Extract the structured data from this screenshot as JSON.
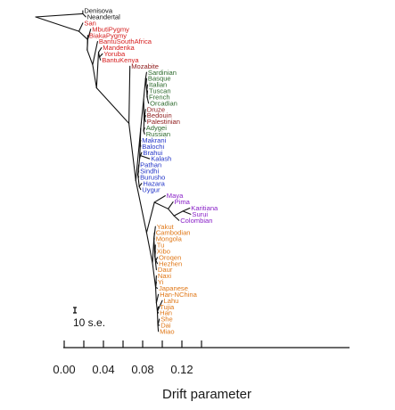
{
  "chart_data": {
    "type": "tree",
    "xlabel": "Drift parameter",
    "xlim": [
      -0.02,
      0.15
    ],
    "x_ticks": [
      "0.00",
      "0.04",
      "0.08",
      "0.12"
    ],
    "x_tick_values": [
      0.0,
      0.04,
      0.08,
      0.12
    ],
    "scale_bar_label": "10 s.e.",
    "region_colors": {
      "archaic": "#111111",
      "africa": "#d62020",
      "mozabite": "#8e1a1a",
      "europe": "#2e6b2e",
      "middle_east": "#8e1a1a",
      "central_south_asia": "#2436c8",
      "america": "#8a22c8",
      "east_asia": "#e07818"
    },
    "leaves": [
      {
        "name": "Denisova",
        "x": 0.019,
        "region": "archaic"
      },
      {
        "name": "Neandertal",
        "x": 0.022,
        "region": "archaic"
      },
      {
        "name": "San",
        "x": 0.019,
        "region": "africa"
      },
      {
        "name": "MbutiPygmy",
        "x": 0.027,
        "region": "africa"
      },
      {
        "name": "BiakaPygmy",
        "x": 0.024,
        "region": "africa"
      },
      {
        "name": "BantuSouthAfrica",
        "x": 0.034,
        "region": "africa"
      },
      {
        "name": "Mandenka",
        "x": 0.038,
        "region": "africa"
      },
      {
        "name": "Yoruba",
        "x": 0.039,
        "region": "africa"
      },
      {
        "name": "BantuKenya",
        "x": 0.037,
        "region": "africa"
      },
      {
        "name": "Mozabite",
        "x": 0.067,
        "region": "mozabite"
      },
      {
        "name": "Sardinian",
        "x": 0.084,
        "region": "europe"
      },
      {
        "name": "Basque",
        "x": 0.084,
        "region": "europe"
      },
      {
        "name": "Italian",
        "x": 0.085,
        "region": "europe"
      },
      {
        "name": "Tuscan",
        "x": 0.085,
        "region": "europe"
      },
      {
        "name": "French",
        "x": 0.085,
        "region": "europe"
      },
      {
        "name": "Orcadian",
        "x": 0.086,
        "region": "europe"
      },
      {
        "name": "Druze",
        "x": 0.083,
        "region": "middle_east"
      },
      {
        "name": "Bedouin",
        "x": 0.083,
        "region": "middle_east"
      },
      {
        "name": "Palestinian",
        "x": 0.083,
        "region": "middle_east"
      },
      {
        "name": "Adygei",
        "x": 0.082,
        "region": "europe"
      },
      {
        "name": "Russian",
        "x": 0.082,
        "region": "europe"
      },
      {
        "name": "Makrani",
        "x": 0.078,
        "region": "central_south_asia"
      },
      {
        "name": "Balochi",
        "x": 0.078,
        "region": "central_south_asia"
      },
      {
        "name": "Brahui",
        "x": 0.079,
        "region": "central_south_asia"
      },
      {
        "name": "Kalash",
        "x": 0.087,
        "region": "central_south_asia"
      },
      {
        "name": "Pathan",
        "x": 0.076,
        "region": "central_south_asia"
      },
      {
        "name": "Sindhi",
        "x": 0.076,
        "region": "central_south_asia"
      },
      {
        "name": "Burusho",
        "x": 0.076,
        "region": "central_south_asia"
      },
      {
        "name": "Hazara",
        "x": 0.079,
        "region": "central_south_asia"
      },
      {
        "name": "Uygur",
        "x": 0.078,
        "region": "central_south_asia"
      },
      {
        "name": "Maya",
        "x": 0.103,
        "region": "america"
      },
      {
        "name": "Pima",
        "x": 0.111,
        "region": "america"
      },
      {
        "name": "Karitiana",
        "x": 0.128,
        "region": "america"
      },
      {
        "name": "Surui",
        "x": 0.129,
        "region": "america"
      },
      {
        "name": "Colombian",
        "x": 0.117,
        "region": "america"
      },
      {
        "name": "Yakut",
        "x": 0.093,
        "region": "east_asia"
      },
      {
        "name": "Cambodian",
        "x": 0.092,
        "region": "east_asia"
      },
      {
        "name": "Mongola",
        "x": 0.092,
        "region": "east_asia"
      },
      {
        "name": "Tu",
        "x": 0.093,
        "region": "east_asia"
      },
      {
        "name": "Xibo",
        "x": 0.093,
        "region": "east_asia"
      },
      {
        "name": "Oroqen",
        "x": 0.095,
        "region": "east_asia"
      },
      {
        "name": "Hezhen",
        "x": 0.095,
        "region": "east_asia"
      },
      {
        "name": "Daur",
        "x": 0.094,
        "region": "east_asia"
      },
      {
        "name": "Naxi",
        "x": 0.094,
        "region": "east_asia"
      },
      {
        "name": "Yi",
        "x": 0.094,
        "region": "east_asia"
      },
      {
        "name": "Japanese",
        "x": 0.095,
        "region": "east_asia"
      },
      {
        "name": "Han-NChina",
        "x": 0.096,
        "region": "east_asia"
      },
      {
        "name": "Lahu",
        "x": 0.1,
        "region": "east_asia"
      },
      {
        "name": "Tujia",
        "x": 0.096,
        "region": "east_asia"
      },
      {
        "name": "Han",
        "x": 0.096,
        "region": "east_asia"
      },
      {
        "name": "She",
        "x": 0.097,
        "region": "east_asia"
      },
      {
        "name": "Dai",
        "x": 0.097,
        "region": "east_asia"
      },
      {
        "name": "Miao",
        "x": 0.096,
        "region": "east_asia"
      }
    ]
  }
}
